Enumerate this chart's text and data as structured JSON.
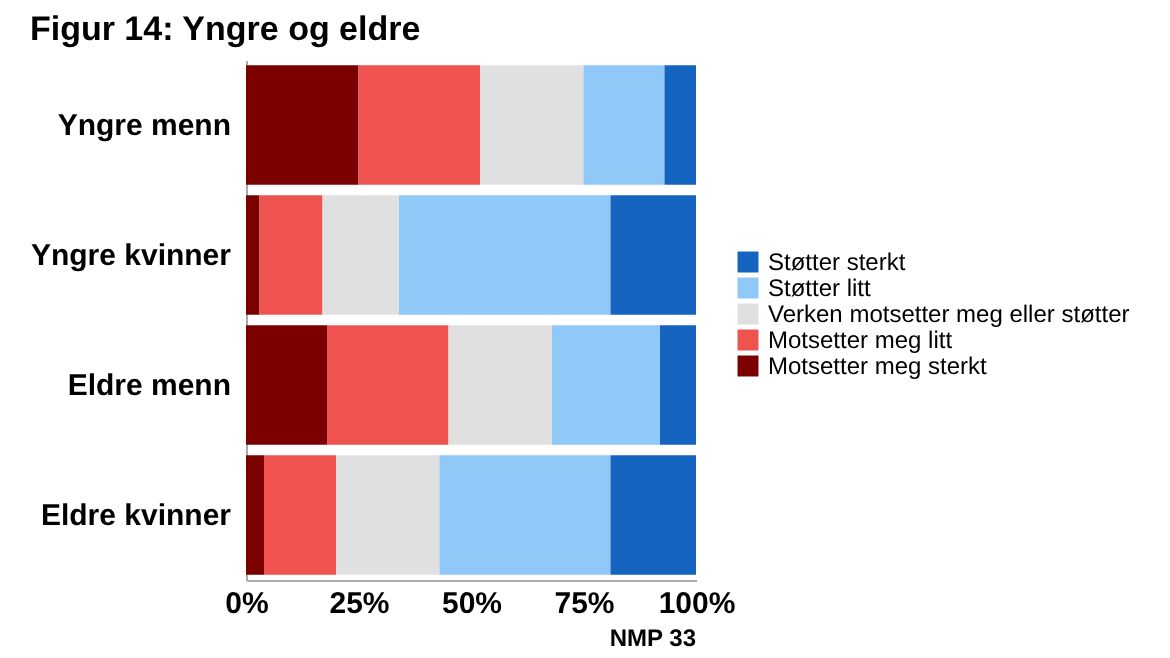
{
  "chart_data": {
    "type": "bar",
    "orientation": "horizontal",
    "stacked": true,
    "title": "Figur 14: Yngre og eldre",
    "categories": [
      "Yngre menn",
      "Yngre kvinner",
      "Eldre menn",
      "Eldre kvinner"
    ],
    "series": [
      {
        "name": "Motsetter meg sterkt",
        "color": "#7b0000",
        "values": [
          25,
          3,
          18,
          4
        ]
      },
      {
        "name": "Motsetter meg litt",
        "color": "#ef5350",
        "values": [
          27,
          14,
          27,
          16
        ]
      },
      {
        "name": "Verken motsetter meg eller støtter",
        "color": "#e0e0e0",
        "values": [
          23,
          17,
          23,
          23
        ]
      },
      {
        "name": "Støtter litt",
        "color": "#90c8f8",
        "values": [
          18,
          47,
          24,
          38
        ]
      },
      {
        "name": "Støtter sterkt",
        "color": "#1565c0",
        "values": [
          7,
          19,
          8,
          19
        ]
      }
    ],
    "xlim": [
      0,
      100
    ],
    "xticks": [
      {
        "value": 0,
        "label": "0%"
      },
      {
        "value": 25,
        "label": "25%"
      },
      {
        "value": 50,
        "label": "50%"
      },
      {
        "value": 75,
        "label": "75%"
      },
      {
        "value": 100,
        "label": "100%"
      }
    ],
    "legend": "right",
    "grid": false,
    "annotations": [
      "NMP 33"
    ]
  }
}
